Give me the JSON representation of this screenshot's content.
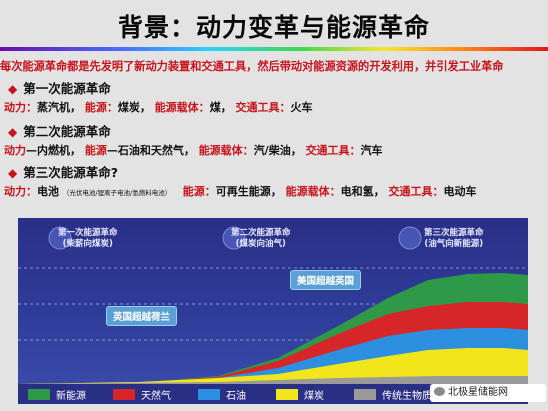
{
  "slide": {
    "title": "背景：动力变革与能源革命",
    "intro": "每次能源革命都是先发明了新动力装置和交通工具，然后带动对能源资源的开发利用，并引发工业革命"
  },
  "rev1": {
    "heading": "第一次能源革命",
    "power_k": "动力：",
    "power_v": "蒸汽机，",
    "energy_k": "能源：",
    "energy_v": "煤炭，",
    "carrier_k": "能源载体：",
    "carrier_v": "煤，",
    "transport_k": "交通工具：",
    "transport_v": "火车"
  },
  "rev2": {
    "heading": "第二次能源革命",
    "power_k": "动力",
    "power_v": "—内燃机，",
    "energy_k": "能源",
    "energy_v": "—石油和天然气，",
    "carrier_k": "能源载体：",
    "carrier_v": "汽/柴油，",
    "transport_k": "交通工具：",
    "transport_v": "汽车"
  },
  "rev3": {
    "heading": "第三次能源革命?",
    "power_k": "动力：",
    "power_v": "电池",
    "power_note": "（光伏电池/锂离子电池/氢燃料电池）",
    "energy_k": "能源：",
    "energy_v": "可再生能源，",
    "carrier_k": "能源载体：",
    "carrier_v": "电和氢，",
    "transport_k": "交通工具：",
    "transport_v": "电动车"
  },
  "chart": {
    "periods": [
      {
        "l1": "第一次能源革命",
        "l2": "(柴薪向煤炭)"
      },
      {
        "l1": "第二次能源革命",
        "l2": "(煤炭向油气)"
      },
      {
        "l1": "第三次能源革命",
        "l2": "(油气向新能源)"
      }
    ],
    "ann_uk": "英国超越荷兰",
    "ann_us": "美国超越英国",
    "legend": [
      {
        "name": "新能源",
        "color": "#2e9a48"
      },
      {
        "name": "天然气",
        "color": "#d6262a"
      },
      {
        "name": "石油",
        "color": "#2d8fe0"
      },
      {
        "name": "煤炭",
        "color": "#f1e61c"
      },
      {
        "name": "传统生物质",
        "color": "#9a9a9a"
      }
    ]
  },
  "watermark": "北极星储能网"
}
